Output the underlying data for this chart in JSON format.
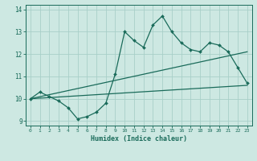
{
  "xlabel": "Humidex (Indice chaleur)",
  "xlim": [
    -0.5,
    23.5
  ],
  "ylim": [
    8.8,
    14.2
  ],
  "xticks": [
    0,
    1,
    2,
    3,
    4,
    5,
    6,
    7,
    8,
    9,
    10,
    11,
    12,
    13,
    14,
    15,
    16,
    17,
    18,
    19,
    20,
    21,
    22,
    23
  ],
  "yticks": [
    9,
    10,
    11,
    12,
    13,
    14
  ],
  "bg_color": "#cde8e2",
  "line_color": "#1a6b5a",
  "grid_color": "#a8cfc8",
  "main_x": [
    0,
    1,
    2,
    3,
    4,
    5,
    6,
    7,
    8,
    9,
    10,
    11,
    12,
    13,
    14,
    15,
    16,
    17,
    18,
    19,
    20,
    21,
    22,
    23
  ],
  "main_y": [
    10.0,
    10.3,
    10.1,
    9.9,
    9.6,
    9.1,
    9.2,
    9.4,
    9.8,
    11.1,
    13.0,
    12.6,
    12.3,
    13.3,
    13.7,
    13.0,
    12.5,
    12.2,
    12.1,
    12.5,
    12.4,
    12.1,
    11.4,
    10.7
  ],
  "line1_x": [
    0,
    23
  ],
  "line1_y": [
    10.0,
    10.6
  ],
  "line2_x": [
    0,
    23
  ],
  "line2_y": [
    10.0,
    12.1
  ]
}
